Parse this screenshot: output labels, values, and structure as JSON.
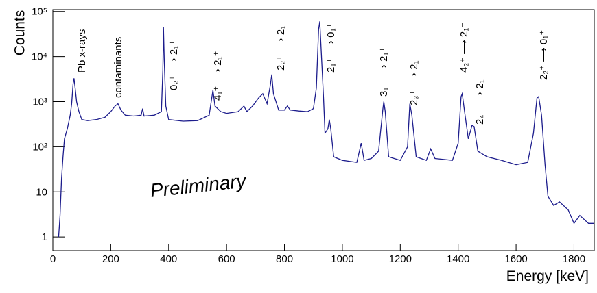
{
  "chart_data": {
    "type": "line",
    "title": "",
    "x_label": "Energy [keV]",
    "y_label": "Counts",
    "xlim": [
      0,
      1870
    ],
    "ylim": [
      0.5,
      110000
    ],
    "log_y": true,
    "xticks": [
      0,
      200,
      400,
      600,
      800,
      1000,
      1200,
      1400,
      1600,
      1800
    ],
    "yticks": [
      1,
      10,
      {
        "value": 100,
        "label": "10²"
      },
      {
        "value": 1000,
        "label": "10³"
      },
      {
        "value": 10000,
        "label": "10⁴"
      },
      {
        "value": 100000,
        "label": "10⁵"
      }
    ],
    "annotations": [
      "Pb x-rays",
      "contaminants",
      "0₂⁺ ⟶ 2₁⁺",
      "4₁⁺ ⟶ 2₁⁺",
      "2₂⁺ ⟶ 2₁⁺",
      "2₁⁺ ⟶ 0₁⁺",
      "3₁⁻ ⟶ 2₁⁺",
      "2₃⁺ ⟶ 2₁⁺",
      "4₂⁺ ⟶ 2₁⁺",
      "2₄⁺ ⟶ 2₁⁺",
      "2₂⁺ ⟶ 0₁⁺",
      "Preliminary"
    ],
    "series": [
      {
        "color": "#1c1c8c",
        "x": [
          20,
          25,
          30,
          35,
          40,
          50,
          60,
          65,
          70,
          73,
          77,
          82,
          90,
          100,
          120,
          150,
          180,
          200,
          215,
          225,
          235,
          250,
          280,
          305,
          310,
          315,
          350,
          375,
          380,
          382,
          385,
          390,
          400,
          450,
          500,
          540,
          553,
          560,
          580,
          600,
          640,
          660,
          670,
          690,
          710,
          725,
          740,
          752,
          756,
          762,
          780,
          800,
          810,
          820,
          850,
          880,
          900,
          910,
          918,
          922,
          928,
          935,
          940,
          950,
          955,
          960,
          970,
          1000,
          1050,
          1065,
          1075,
          1100,
          1125,
          1140,
          1143,
          1148,
          1160,
          1200,
          1225,
          1233,
          1240,
          1255,
          1290,
          1305,
          1320,
          1380,
          1400,
          1410,
          1414,
          1422,
          1435,
          1448,
          1455,
          1468,
          1500,
          1550,
          1600,
          1640,
          1660,
          1672,
          1678,
          1688,
          1700,
          1710,
          1730,
          1750,
          1780,
          1800,
          1820,
          1850,
          1870
        ],
        "values": [
          1,
          3,
          20,
          60,
          150,
          250,
          500,
          900,
          2500,
          3300,
          2000,
          1000,
          600,
          400,
          380,
          400,
          450,
          600,
          800,
          900,
          650,
          500,
          480,
          500,
          700,
          480,
          500,
          600,
          5000,
          45000,
          8000,
          800,
          400,
          370,
          380,
          500,
          1800,
          800,
          600,
          550,
          600,
          800,
          600,
          800,
          1200,
          1500,
          900,
          2500,
          4000,
          1500,
          650,
          650,
          800,
          650,
          620,
          600,
          700,
          2000,
          40000,
          60000,
          10000,
          1200,
          200,
          250,
          400,
          250,
          60,
          50,
          45,
          120,
          50,
          55,
          80,
          700,
          1000,
          600,
          60,
          50,
          100,
          900,
          500,
          60,
          50,
          90,
          55,
          50,
          120,
          1300,
          1500,
          600,
          150,
          300,
          280,
          80,
          60,
          50,
          40,
          45,
          200,
          1200,
          1300,
          500,
          40,
          8,
          5,
          6,
          4,
          2,
          3,
          2,
          2
        ]
      }
    ]
  }
}
